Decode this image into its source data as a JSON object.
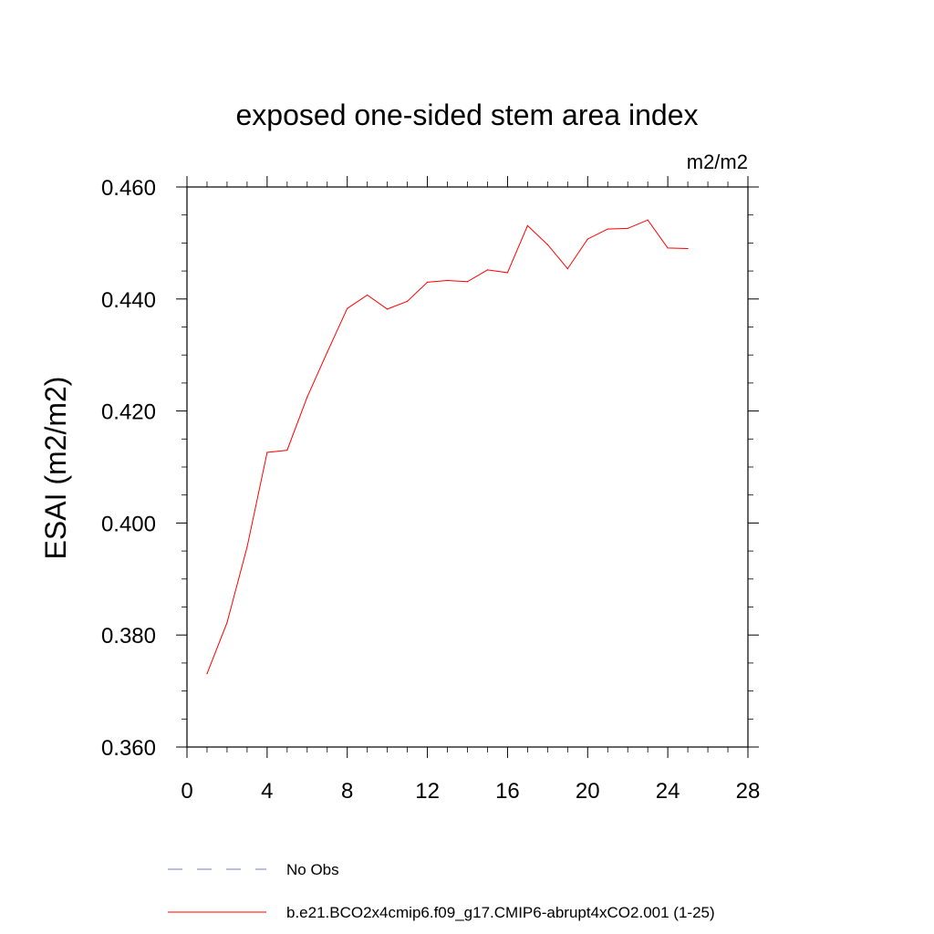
{
  "chart_data": {
    "type": "line",
    "title": "exposed one-sided stem area index",
    "units_label": "m2/m2",
    "xlabel": "",
    "ylabel": "ESAI  (m2/m2)",
    "xlim": [
      0,
      28
    ],
    "ylim": [
      0.36,
      0.46
    ],
    "x_ticks": [
      0,
      4,
      8,
      12,
      16,
      20,
      24,
      28
    ],
    "x_tick_labels": [
      "0",
      "4",
      "8",
      "12",
      "16",
      "20",
      "24",
      "28"
    ],
    "y_ticks": [
      0.36,
      0.38,
      0.4,
      0.42,
      0.44,
      0.46
    ],
    "y_tick_labels": [
      "0.360",
      "0.380",
      "0.400",
      "0.420",
      "0.440",
      "0.460"
    ],
    "series": [
      {
        "name": "b.e21.BCO2x4cmip6.f09_g17.CMIP6-abrupt4xCO2.001 (1-25)",
        "color": "#ff0000",
        "x": [
          1,
          2,
          3,
          4,
          5,
          6,
          7,
          8,
          9,
          10,
          11,
          12,
          13,
          14,
          15,
          16,
          17,
          18,
          19,
          20,
          21,
          22,
          23,
          24,
          25
        ],
        "values": [
          0.3731,
          0.3822,
          0.3957,
          0.4126,
          0.413,
          0.4225,
          0.4305,
          0.4383,
          0.4407,
          0.4382,
          0.4396,
          0.443,
          0.4433,
          0.4431,
          0.4452,
          0.4447,
          0.4531,
          0.4497,
          0.4454,
          0.4507,
          0.4525,
          0.4526,
          0.4541,
          0.4491,
          0.449
        ]
      }
    ],
    "legend": [
      {
        "label": "No Obs",
        "color": "#7b7bd1",
        "style": "dashed"
      },
      {
        "label": "b.e21.BCO2x4cmip6.f09_g17.CMIP6-abrupt4xCO2.001 (1-25)",
        "color": "#ff0000",
        "style": "solid"
      }
    ],
    "legend_position": "bottom"
  }
}
